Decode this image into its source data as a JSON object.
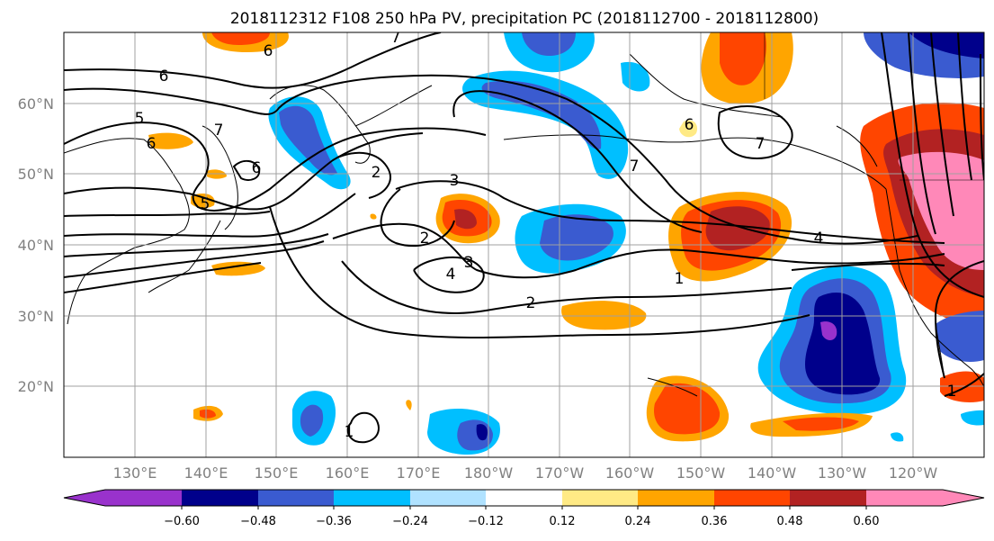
{
  "title": "2018112312 F108 250 hPa PV, precipitation PC (2018112700 - 2018112800)",
  "lat_labels": [
    "60°N",
    "50°N",
    "40°N",
    "30°N",
    "20°N"
  ],
  "lon_labels": [
    "130°E",
    "140°E",
    "150°E",
    "160°E",
    "170°E",
    "180°W",
    "170°W",
    "160°W",
    "150°W",
    "140°W",
    "130°W",
    "120°W"
  ],
  "colorbar": {
    "ticks": [
      "−0.60",
      "−0.48",
      "−0.36",
      "−0.24",
      "−0.12",
      "0.12",
      "0.24",
      "0.36",
      "0.48",
      "0.60"
    ],
    "colors": [
      "#9932cc",
      "#00008b",
      "#3a5bd0",
      "#00bfff",
      "#b0e2ff",
      "#ffffff",
      "#ffea85",
      "#ffa500",
      "#ff4500",
      "#b22222",
      "#ff88b8"
    ]
  },
  "contour_labels": [
    "6",
    "6",
    "7",
    "5",
    "6",
    "7",
    "6",
    "5",
    "2",
    "3",
    "2",
    "3",
    "4",
    "2",
    "7",
    "6",
    "7",
    "4",
    "1",
    "1",
    "1"
  ]
}
